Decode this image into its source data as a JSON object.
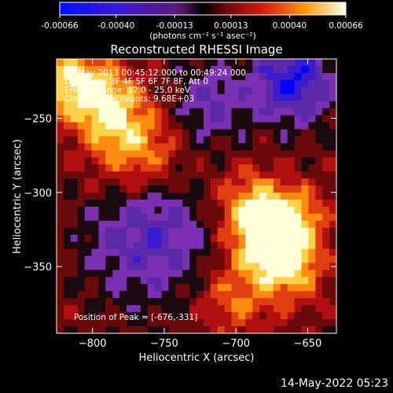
{
  "colorbar": {
    "tick_labels": [
      "-0.00066",
      "-0.00040",
      "-0.00013",
      "0.00013",
      "0.00040",
      "0.00066"
    ],
    "tick_values": [
      -0.00066,
      -0.0004,
      -0.00013,
      0.00013,
      0.0004,
      0.00066
    ],
    "range": [
      -0.00066,
      0.00066
    ],
    "unit_label": "(photons cm⁻² s⁻¹ asec⁻²)"
  },
  "chart_data": {
    "type": "heatmap",
    "title": "Reconstructed RHESSI Image",
    "xlabel": "Heliocentric X (arcsec)",
    "ylabel": "Heliocentric Y (arcsec)",
    "xlim": [
      -825,
      -630
    ],
    "ylim": [
      -395,
      -210
    ],
    "x_ticks": [
      -800,
      -750,
      -700,
      -650
    ],
    "y_ticks": [
      -250,
      -300,
      -350
    ],
    "x_tick_labels": [
      "−800",
      "−750",
      "−700",
      "−650"
    ],
    "y_tick_labels": [
      "−250",
      "−300",
      "−350"
    ],
    "colormap": [
      "#0000ff",
      "#3a1bd0",
      "#5a2aa8",
      "#7a30b0",
      "#1a0a10",
      "#6a0a0a",
      "#b01010",
      "#e04010",
      "#ff8a10",
      "#ffd24a",
      "#ffffd8"
    ],
    "sources": [
      {
        "x": -815,
        "y": -225,
        "sigma": 18,
        "amp": 0.0005
      },
      {
        "x": -770,
        "y": -270,
        "sigma": 22,
        "amp": 0.00045
      },
      {
        "x": -790,
        "y": -240,
        "sigma": 16,
        "amp": 0.00042
      },
      {
        "x": -676,
        "y": -331,
        "sigma": 16,
        "amp": 0.00066
      },
      {
        "x": -690,
        "y": -310,
        "sigma": 18,
        "amp": 0.0004
      },
      {
        "x": -662,
        "y": -350,
        "sigma": 16,
        "amp": 0.00045
      },
      {
        "x": -700,
        "y": -370,
        "sigma": 18,
        "amp": 0.0003
      },
      {
        "x": -655,
        "y": -315,
        "sigma": 14,
        "amp": 0.0003
      },
      {
        "x": -660,
        "y": -225,
        "sigma": 20,
        "amp": -0.00055
      },
      {
        "x": -760,
        "y": -330,
        "sigma": 30,
        "amp": -0.0004
      },
      {
        "x": -720,
        "y": -240,
        "sigma": 20,
        "amp": -0.0003
      }
    ],
    "annotations": [
      "22-May-2013 00:45:12.000 to 00:49:24.000",
      "Detectors: 3F 4F 5F 6F 7F 8F, Att 0",
      "Energy Range: 12.0 - 25.0 keV",
      "Clean    Total counts: 9.68E+03"
    ],
    "peak_label": "Position of Peak = [-676,-331]",
    "peak": {
      "x": -676,
      "y": -331
    }
  },
  "footer": {
    "timestamp": "14-May-2022 05:23"
  }
}
